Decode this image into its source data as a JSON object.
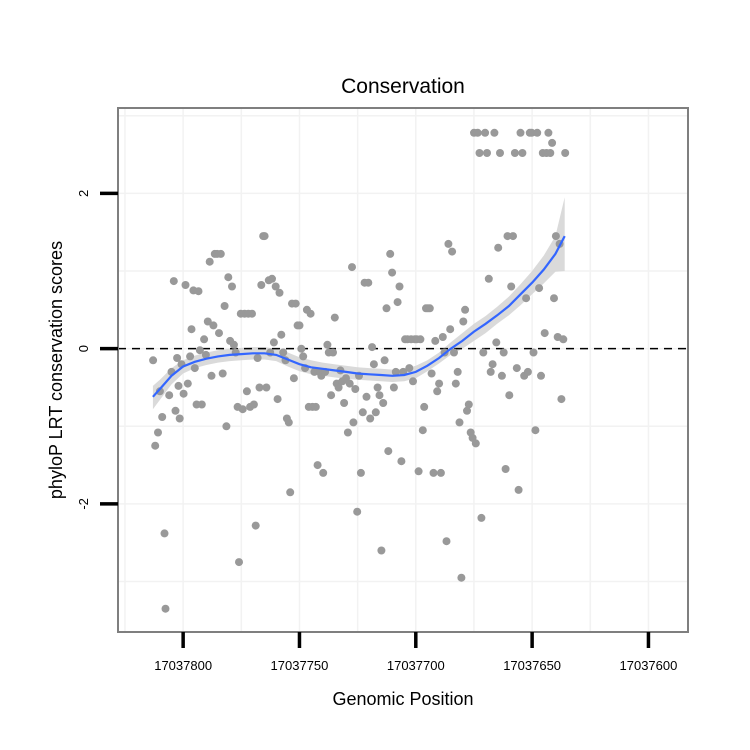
{
  "chart_data": {
    "type": "scatter",
    "title": "Conservation",
    "xlabel": "Genomic Position",
    "ylabel": "phyloP LRT conservation scores",
    "x_reversed": true,
    "xlim": [
      17037828,
      17037583
    ],
    "ylim": [
      -3.65,
      3.1
    ],
    "x_ticks": [
      17037800,
      17037750,
      17037700,
      17037650,
      17037600
    ],
    "x_tick_labels": [
      "17037800",
      "17037750",
      "17037700",
      "17037650",
      "17037600"
    ],
    "y_ticks": [
      2,
      0,
      -2
    ],
    "y_tick_labels": [
      "2",
      "0",
      "-2"
    ],
    "reference_line": {
      "y": 0,
      "style": "dashed"
    },
    "grid": true,
    "colors": {
      "points": "#999999",
      "smooth": "#3366ff",
      "band": "#d3d3d3",
      "panel_border": "#7f7f7f",
      "grid": "#f2f2f2"
    },
    "points": [
      [
        17037812.9,
        -0.15
      ],
      [
        17037812,
        -1.25
      ],
      [
        17037810.8,
        -1.08
      ],
      [
        17037810,
        -0.55
      ],
      [
        17037809,
        -0.88
      ],
      [
        17037808,
        -2.38
      ],
      [
        17037807.6,
        -3.35
      ],
      [
        17037806,
        -0.6
      ],
      [
        17037805,
        -0.3
      ],
      [
        17037804,
        0.87
      ],
      [
        17037803.3,
        -0.8
      ],
      [
        17037802.6,
        -0.12
      ],
      [
        17037802,
        -0.48
      ],
      [
        17037801.5,
        -0.9
      ],
      [
        17037800.7,
        -0.2
      ],
      [
        17037799.8,
        -0.58
      ],
      [
        17037799,
        0.82
      ],
      [
        17037798,
        -0.45
      ],
      [
        17037797,
        -0.1
      ],
      [
        17037796.4,
        0.25
      ],
      [
        17037795.6,
        0.75
      ],
      [
        17037795,
        -0.25
      ],
      [
        17037794.2,
        -0.72
      ],
      [
        17037793.4,
        0.74
      ],
      [
        17037792.8,
        -0.02
      ],
      [
        17037792,
        -0.72
      ],
      [
        17037791,
        0.12
      ],
      [
        17037790.2,
        -0.08
      ],
      [
        17037789.4,
        0.35
      ],
      [
        17037788.6,
        1.12
      ],
      [
        17037787.8,
        -0.35
      ],
      [
        17037787,
        0.3
      ],
      [
        17037786.4,
        1.22
      ],
      [
        17037785.4,
        1.22
      ],
      [
        17037784.6,
        0.2
      ],
      [
        17037783.8,
        1.22
      ],
      [
        17037783,
        -0.32
      ],
      [
        17037782.2,
        0.55
      ],
      [
        17037781.4,
        -1
      ],
      [
        17037780.6,
        0.92
      ],
      [
        17037779.8,
        0.1
      ],
      [
        17037779,
        0.8
      ],
      [
        17037778.2,
        0.05
      ],
      [
        17037777.4,
        -0.05
      ],
      [
        17037776.6,
        -0.75
      ],
      [
        17037776,
        -2.75
      ],
      [
        17037775.2,
        0.45
      ],
      [
        17037774.4,
        -0.78
      ],
      [
        17037773.6,
        0.45
      ],
      [
        17037772.6,
        -0.55
      ],
      [
        17037772,
        0.45
      ],
      [
        17037771.2,
        -0.75
      ],
      [
        17037770.4,
        0.45
      ],
      [
        17037769.6,
        -0.72
      ],
      [
        17037768.8,
        -2.28
      ],
      [
        17037768,
        -0.12
      ],
      [
        17037767.2,
        -0.5
      ],
      [
        17037766.4,
        0.82
      ],
      [
        17037765.6,
        1.45
      ],
      [
        17037765,
        1.45
      ],
      [
        17037764.2,
        -0.5
      ],
      [
        17037763.2,
        0.88
      ],
      [
        17037762.6,
        -0.05
      ],
      [
        17037761.8,
        0.9
      ],
      [
        17037761,
        0.08
      ],
      [
        17037760.2,
        0.8
      ],
      [
        17037759.4,
        -0.65
      ],
      [
        17037758.6,
        0.72
      ],
      [
        17037757.8,
        0.18
      ],
      [
        17037757,
        -0.05
      ],
      [
        17037756,
        -0.15
      ],
      [
        17037755.4,
        -0.9
      ],
      [
        17037754.6,
        -0.95
      ],
      [
        17037754,
        -1.85
      ],
      [
        17037753.2,
        0.58
      ],
      [
        17037752.4,
        -0.38
      ],
      [
        17037751.6,
        0.58
      ],
      [
        17037750.8,
        0.3
      ],
      [
        17037750,
        0.3
      ],
      [
        17037749.2,
        0
      ],
      [
        17037748.4,
        -0.1
      ],
      [
        17037747.6,
        -0.25
      ],
      [
        17037746.8,
        0.5
      ],
      [
        17037746,
        -0.75
      ],
      [
        17037745.2,
        0.45
      ],
      [
        17037744.4,
        -0.75
      ],
      [
        17037743.6,
        -0.3
      ],
      [
        17037743,
        -0.75
      ],
      [
        17037742.2,
        -1.5
      ],
      [
        17037741.2,
        -0.3
      ],
      [
        17037740.6,
        -0.35
      ],
      [
        17037739.8,
        -1.6
      ],
      [
        17037739,
        -0.3
      ],
      [
        17037738,
        0.05
      ],
      [
        17037737.4,
        -0.05
      ],
      [
        17037736.4,
        -0.6
      ],
      [
        17037735.6,
        -0.05
      ],
      [
        17037734.8,
        0.4
      ],
      [
        17037734,
        -0.45
      ],
      [
        17037733.2,
        -0.5
      ],
      [
        17037732.4,
        -0.28
      ],
      [
        17037731.6,
        -0.42
      ],
      [
        17037730.8,
        -0.7
      ],
      [
        17037730,
        -0.38
      ],
      [
        17037729.2,
        -1.08
      ],
      [
        17037728.4,
        -0.45
      ],
      [
        17037727.4,
        1.05
      ],
      [
        17037726.8,
        -0.95
      ],
      [
        17037726,
        -0.52
      ],
      [
        17037725.2,
        -2.1
      ],
      [
        17037724.4,
        -0.35
      ],
      [
        17037723.6,
        -1.6
      ],
      [
        17037722.8,
        -0.82
      ],
      [
        17037722,
        0.85
      ],
      [
        17037721.2,
        -0.62
      ],
      [
        17037720.4,
        0.85
      ],
      [
        17037719.6,
        -0.9
      ],
      [
        17037718.8,
        0.02
      ],
      [
        17037718,
        -0.2
      ],
      [
        17037717.2,
        -0.82
      ],
      [
        17037716.4,
        -0.5
      ],
      [
        17037715.6,
        -0.6
      ],
      [
        17037714.8,
        -2.6
      ],
      [
        17037714,
        -0.7
      ],
      [
        17037713.4,
        -0.15
      ],
      [
        17037712.6,
        0.52
      ],
      [
        17037711.8,
        -1.32
      ],
      [
        17037711,
        1.22
      ],
      [
        17037710.2,
        0.98
      ],
      [
        17037709.4,
        -0.5
      ],
      [
        17037708.6,
        -0.3
      ],
      [
        17037707.8,
        0.6
      ],
      [
        17037707,
        0.8
      ],
      [
        17037706.2,
        -1.45
      ],
      [
        17037705.4,
        -0.3
      ],
      [
        17037704.6,
        0.12
      ],
      [
        17037703.6,
        0.12
      ],
      [
        17037702.8,
        -0.25
      ],
      [
        17037702,
        0.12
      ],
      [
        17037701.2,
        -0.42
      ],
      [
        17037700.4,
        0.12
      ],
      [
        17037699.6,
        0.12
      ],
      [
        17037698.8,
        -1.58
      ],
      [
        17037698,
        0.12
      ],
      [
        17037697,
        -1.05
      ],
      [
        17037696.4,
        -0.75
      ],
      [
        17037695.6,
        0.52
      ],
      [
        17037694.8,
        0.52
      ],
      [
        17037694,
        0.52
      ],
      [
        17037693.2,
        -0.32
      ],
      [
        17037692.4,
        -1.6
      ],
      [
        17037691.6,
        0.1
      ],
      [
        17037690.8,
        -0.55
      ],
      [
        17037690,
        -0.45
      ],
      [
        17037689.2,
        -1.6
      ],
      [
        17037688.4,
        0.15
      ],
      [
        17037687.6,
        -0.05
      ],
      [
        17037686.8,
        -2.48
      ],
      [
        17037686,
        1.35
      ],
      [
        17037685.2,
        0.25
      ],
      [
        17037684.4,
        1.25
      ],
      [
        17037683.6,
        -0.05
      ],
      [
        17037682.8,
        -0.45
      ],
      [
        17037682,
        -0.3
      ],
      [
        17037681.2,
        -0.95
      ],
      [
        17037680.4,
        -2.95
      ],
      [
        17037679.6,
        0.35
      ],
      [
        17037678.8,
        0.5
      ],
      [
        17037678,
        -0.8
      ],
      [
        17037677.2,
        -0.72
      ],
      [
        17037676.4,
        -1.08
      ],
      [
        17037675.6,
        -1.15
      ],
      [
        17037675,
        2.78
      ],
      [
        17037674.2,
        -1.22
      ],
      [
        17037673.4,
        2.78
      ],
      [
        17037672.6,
        2.52
      ],
      [
        17037671.8,
        -2.18
      ],
      [
        17037671,
        -0.05
      ],
      [
        17037670.2,
        2.78
      ],
      [
        17037669.4,
        2.52
      ],
      [
        17037668.6,
        0.9
      ],
      [
        17037667.8,
        -0.3
      ],
      [
        17037667,
        -0.2
      ],
      [
        17037666.2,
        2.78
      ],
      [
        17037665.4,
        0.08
      ],
      [
        17037664.6,
        1.3
      ],
      [
        17037663.8,
        2.52
      ],
      [
        17037663,
        -0.35
      ],
      [
        17037662.2,
        -0.05
      ],
      [
        17037661.4,
        -1.55
      ],
      [
        17037660.6,
        1.45
      ],
      [
        17037659.8,
        -0.6
      ],
      [
        17037659,
        0.8
      ],
      [
        17037658.2,
        1.45
      ],
      [
        17037657.4,
        2.52
      ],
      [
        17037656.6,
        -0.25
      ],
      [
        17037655.8,
        -1.82
      ],
      [
        17037655,
        2.78
      ],
      [
        17037654.2,
        2.52
      ],
      [
        17037653.4,
        -0.35
      ],
      [
        17037652.6,
        0.65
      ],
      [
        17037651.8,
        -0.3
      ],
      [
        17037651,
        2.78
      ],
      [
        17037650.2,
        2.78
      ],
      [
        17037649.4,
        -0.05
      ],
      [
        17037648.6,
        -1.05
      ],
      [
        17037647.8,
        2.78
      ],
      [
        17037647,
        0.78
      ],
      [
        17037646.2,
        -0.35
      ],
      [
        17037645.4,
        2.52
      ],
      [
        17037644.6,
        0.2
      ],
      [
        17037643.8,
        2.52
      ],
      [
        17037643,
        2.78
      ],
      [
        17037642.2,
        2.52
      ],
      [
        17037641.4,
        2.65
      ],
      [
        17037640.6,
        0.65
      ],
      [
        17037639.8,
        1.45
      ],
      [
        17037639,
        0.15
      ],
      [
        17037638.2,
        1.35
      ],
      [
        17037637.4,
        -0.65
      ],
      [
        17037636.6,
        0.12
      ],
      [
        17037635.8,
        2.52
      ]
    ],
    "smooth_line": [
      [
        17037813,
        -0.62
      ],
      [
        17037810,
        -0.52
      ],
      [
        17037805,
        -0.35
      ],
      [
        17037800,
        -0.23
      ],
      [
        17037795,
        -0.17
      ],
      [
        17037790,
        -0.13
      ],
      [
        17037785,
        -0.1
      ],
      [
        17037780,
        -0.08
      ],
      [
        17037775,
        -0.07
      ],
      [
        17037770,
        -0.06
      ],
      [
        17037765,
        -0.06
      ],
      [
        17037760,
        -0.08
      ],
      [
        17037755,
        -0.14
      ],
      [
        17037750,
        -0.2
      ],
      [
        17037745,
        -0.24
      ],
      [
        17037740,
        -0.26
      ],
      [
        17037735,
        -0.28
      ],
      [
        17037730,
        -0.3
      ],
      [
        17037725,
        -0.32
      ],
      [
        17037720,
        -0.33
      ],
      [
        17037715,
        -0.34
      ],
      [
        17037710,
        -0.35
      ],
      [
        17037705,
        -0.34
      ],
      [
        17037700,
        -0.3
      ],
      [
        17037695,
        -0.22
      ],
      [
        17037690,
        -0.12
      ],
      [
        17037685,
        0
      ],
      [
        17037680,
        0.1
      ],
      [
        17037675,
        0.22
      ],
      [
        17037670,
        0.32
      ],
      [
        17037665,
        0.43
      ],
      [
        17037660,
        0.55
      ],
      [
        17037655,
        0.7
      ],
      [
        17037650,
        0.85
      ],
      [
        17037645,
        1.02
      ],
      [
        17037640,
        1.22
      ],
      [
        17037636,
        1.45
      ]
    ],
    "confidence_band": {
      "x": [
        17037813,
        17037810,
        17037805,
        17037800,
        17037795,
        17037790,
        17037785,
        17037780,
        17037775,
        17037770,
        17037765,
        17037760,
        17037755,
        17037750,
        17037745,
        17037740,
        17037735,
        17037730,
        17037725,
        17037720,
        17037715,
        17037710,
        17037705,
        17037700,
        17037695,
        17037690,
        17037685,
        17037680,
        17037675,
        17037670,
        17037665,
        17037660,
        17037655,
        17037650,
        17037645,
        17037640,
        17037636
      ],
      "upper": [
        -0.48,
        -0.4,
        -0.25,
        -0.15,
        -0.09,
        -0.05,
        -0.02,
        0,
        0.01,
        0.02,
        0.02,
        0,
        -0.05,
        -0.11,
        -0.15,
        -0.18,
        -0.2,
        -0.22,
        -0.24,
        -0.25,
        -0.26,
        -0.27,
        -0.26,
        -0.22,
        -0.15,
        -0.05,
        0.08,
        0.2,
        0.32,
        0.42,
        0.54,
        0.67,
        0.83,
        1,
        1.2,
        1.45,
        1.95
      ],
      "lower": [
        -0.78,
        -0.66,
        -0.46,
        -0.32,
        -0.25,
        -0.21,
        -0.18,
        -0.16,
        -0.15,
        -0.14,
        -0.14,
        -0.16,
        -0.23,
        -0.29,
        -0.33,
        -0.35,
        -0.37,
        -0.39,
        -0.4,
        -0.41,
        -0.42,
        -0.43,
        -0.42,
        -0.38,
        -0.29,
        -0.19,
        -0.08,
        0,
        0.1,
        0.2,
        0.32,
        0.43,
        0.56,
        0.7,
        0.84,
        0.99,
        1.0
      ]
    }
  }
}
